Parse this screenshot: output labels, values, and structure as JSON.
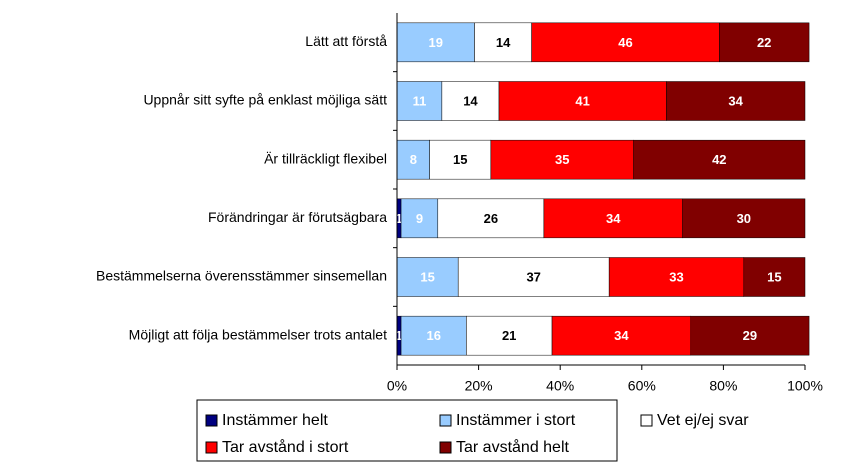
{
  "chart_data": {
    "type": "stacked_bar_horizontal",
    "categories": [
      "Lätt att förstå",
      "Uppnår sitt syfte på enklast möjliga sätt",
      "Är tillräckligt flexibel",
      "Förändringar är förutsägbara",
      "Bestämmelserna överensstämmer sinsemellan",
      "Möjligt att följa bestämmelser trots antalet"
    ],
    "series": [
      {
        "name": "Instämmer helt",
        "color": "#000080",
        "values": [
          0,
          0,
          0,
          1,
          0,
          1
        ]
      },
      {
        "name": "Instämmer i stort",
        "color": "#99ccff",
        "values": [
          19,
          11,
          8,
          9,
          15,
          16
        ]
      },
      {
        "name": "Vet ej/ej svar",
        "color": "#ffffff",
        "values": [
          14,
          14,
          15,
          26,
          37,
          21
        ]
      },
      {
        "name": "Tar avstånd i stort",
        "color": "#ff0000",
        "values": [
          46,
          41,
          35,
          34,
          33,
          34
        ]
      },
      {
        "name": "Tar avstånd helt",
        "color": "#800000",
        "values": [
          22,
          34,
          42,
          30,
          15,
          29
        ]
      }
    ],
    "xlim": [
      0,
      100
    ],
    "xticks": [
      {
        "value": 0,
        "label": "0%"
      },
      {
        "value": 20,
        "label": "20%"
      },
      {
        "value": 40,
        "label": "40%"
      },
      {
        "value": 60,
        "label": "60%"
      },
      {
        "value": 80,
        "label": "80%"
      },
      {
        "value": 100,
        "label": "100%"
      }
    ],
    "legend": "bottom"
  }
}
